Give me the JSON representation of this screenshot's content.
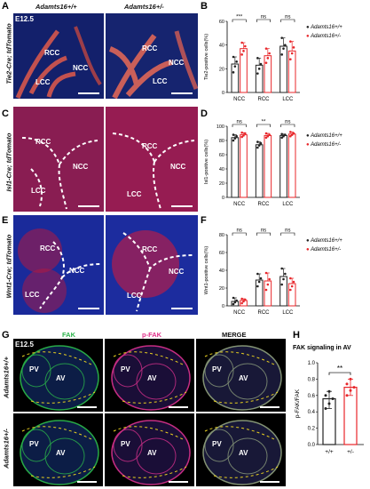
{
  "panels": {
    "A": {
      "letter": "A",
      "header_left": "Adamts16+/+",
      "header_right": "Adamts16+/-",
      "stage": "E12.5",
      "side_label": "Tie2-Cre; tdTomato",
      "regions": [
        "RCC",
        "NCC",
        "LCC"
      ]
    },
    "C": {
      "letter": "C",
      "side_label": "Isl1-Cre; tdTomato",
      "regions": [
        "RCC",
        "NCC",
        "LCC"
      ]
    },
    "E": {
      "letter": "E",
      "side_label": "Wnt1-Cre; tdTomato",
      "regions": [
        "RCC",
        "NCC",
        "LCC"
      ]
    },
    "G": {
      "letter": "G",
      "stage": "E12.5",
      "col_titles": [
        "FAK",
        "p-FAK",
        "MERGE"
      ],
      "row_labels": [
        "Adamts16+/+",
        "Adamts16+/-"
      ],
      "regions": [
        "PV",
        "AV"
      ]
    }
  },
  "legend": {
    "wt": "Adamts16+/+",
    "het": "Adamts16+/-"
  },
  "colors": {
    "wt": "#222222",
    "het": "#e8262a",
    "fak": "#2bb34a",
    "pfak": "#e0308a"
  },
  "chart_data": [
    {
      "panel": "B",
      "type": "bar",
      "ylabel": "Tie2-positive cells(%)",
      "categories": [
        "NCC",
        "RCC",
        "LCC"
      ],
      "ylim": [
        0,
        60
      ],
      "yticks": [
        0,
        20,
        40,
        60
      ],
      "series": [
        {
          "name": "Adamts16+/+",
          "values": [
            24,
            23,
            39
          ],
          "points": [
            [
              17,
              22,
              26,
              30
            ],
            [
              16,
              20,
              24,
              29
            ],
            [
              32,
              37,
              40,
              46
            ]
          ]
        },
        {
          "name": "Adamts16+/-",
          "values": [
            37,
            31,
            35
          ],
          "points": [
            [
              32,
              35,
              39,
              42
            ],
            [
              25,
              29,
              33,
              37
            ],
            [
              28,
              33,
              38,
              43
            ]
          ]
        }
      ],
      "significance": [
        "***",
        "ns",
        "ns"
      ]
    },
    {
      "panel": "D",
      "type": "bar",
      "ylabel": "Isl1-positive cells(%)",
      "categories": [
        "NCC",
        "RCC",
        "LCC"
      ],
      "ylim": [
        0,
        100
      ],
      "yticks": [
        0,
        20,
        40,
        60,
        80,
        100
      ],
      "series": [
        {
          "name": "Adamts16+/+",
          "values": [
            84,
            74,
            87
          ],
          "points": [
            [
              80,
              83,
              86,
              88
            ],
            [
              70,
              73,
              76,
              78
            ],
            [
              84,
              86,
              88,
              89
            ]
          ]
        },
        {
          "name": "Adamts16+/-",
          "values": [
            88,
            87,
            89
          ],
          "points": [
            [
              85,
              87,
              90,
              91
            ],
            [
              84,
              86,
              88,
              90
            ],
            [
              86,
              88,
              90,
              92
            ]
          ]
        }
      ],
      "significance": [
        "ns",
        "**",
        "ns"
      ]
    },
    {
      "panel": "F",
      "type": "bar",
      "ylabel": "Wnt1-positive cells(%)",
      "categories": [
        "NCC",
        "RCC",
        "LCC"
      ],
      "ylim": [
        0,
        80
      ],
      "yticks": [
        0,
        20,
        40,
        60,
        80
      ],
      "series": [
        {
          "name": "Adamts16+/+",
          "values": [
            5,
            29,
            33
          ],
          "points": [
            [
              2,
              4,
              6,
              9
            ],
            [
              22,
              27,
              31,
              36
            ],
            [
              24,
              30,
              36,
              42
            ]
          ]
        },
        {
          "name": "Adamts16+/-",
          "values": [
            6,
            28,
            25
          ],
          "points": [
            [
              3,
              5,
              7,
              8
            ],
            [
              18,
              24,
              30,
              37
            ],
            [
              18,
              22,
              27,
              31
            ]
          ]
        }
      ],
      "significance": [
        "ns",
        "ns",
        "ns"
      ]
    },
    {
      "panel": "H",
      "type": "bar",
      "title": "FAK signaling in AV",
      "ylabel": "p-FAK/FAK",
      "categories": [
        "+/+",
        "+/-"
      ],
      "ylim": [
        0,
        1.0
      ],
      "yticks": [
        0.0,
        0.2,
        0.4,
        0.6,
        0.8,
        1.0
      ],
      "values": [
        0.56,
        0.7
      ],
      "points": [
        [
          0.44,
          0.5,
          0.56,
          0.6,
          0.65
        ],
        [
          0.6,
          0.66,
          0.7,
          0.74,
          0.8
        ]
      ],
      "significance": "**"
    }
  ]
}
